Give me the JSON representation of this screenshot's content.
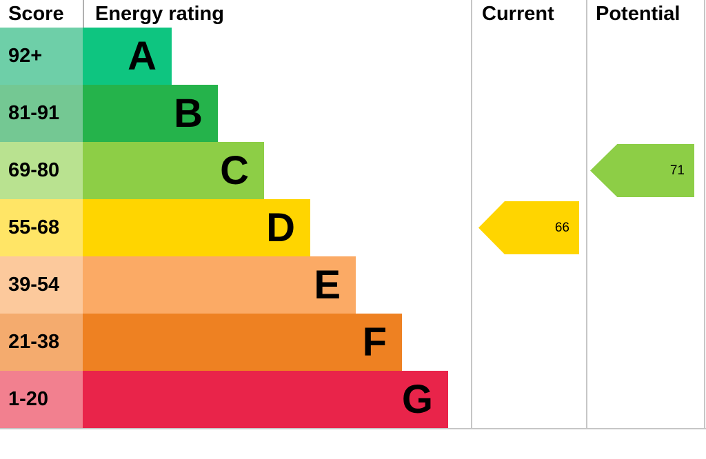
{
  "header": {
    "score": "Score",
    "energy_rating": "Energy rating",
    "current": "Current",
    "potential": "Potential"
  },
  "chart_data": {
    "type": "bar",
    "subtype": "epc-energy-rating",
    "title": "Energy rating",
    "bands": [
      {
        "score": "92+",
        "letter": "A",
        "color": "#0ec580",
        "tint": "#6ecfa8"
      },
      {
        "score": "81-91",
        "letter": "B",
        "color": "#25b34b",
        "tint": "#74c893"
      },
      {
        "score": "69-80",
        "letter": "C",
        "color": "#8dce46",
        "tint": "#b9e290"
      },
      {
        "score": "55-68",
        "letter": "D",
        "color": "#ffd500",
        "tint": "#ffe566"
      },
      {
        "score": "39-54",
        "letter": "E",
        "color": "#fbaa65",
        "tint": "#fcc99c"
      },
      {
        "score": "21-38",
        "letter": "F",
        "color": "#ee8122",
        "tint": "#f4ab6e"
      },
      {
        "score": "1-20",
        "letter": "G",
        "color": "#e9244a",
        "tint": "#f2808f"
      }
    ],
    "current": {
      "value": 66,
      "band": "D",
      "color": "#ffd500"
    },
    "potential": {
      "value": 71,
      "band": "C",
      "color": "#8dce46"
    }
  }
}
